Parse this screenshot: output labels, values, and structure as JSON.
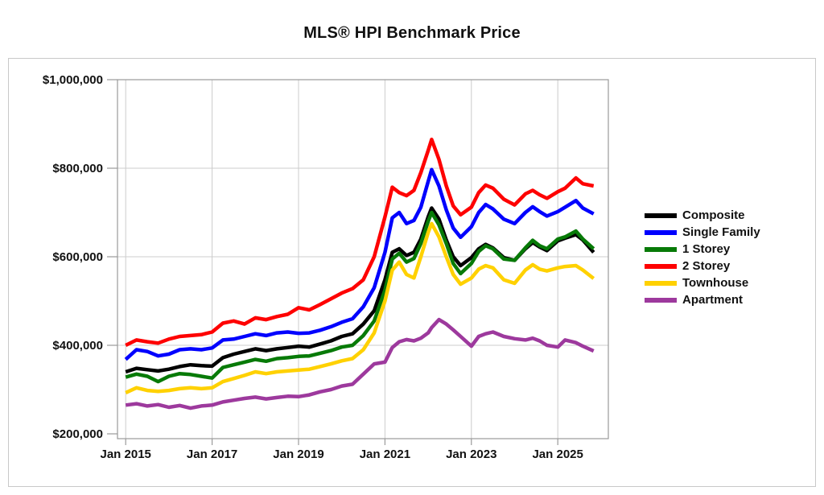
{
  "title": "MLS® HPI Benchmark Price",
  "legend": [
    {
      "label": "Composite",
      "color": "#000000"
    },
    {
      "label": "Single Family",
      "color": "#0000fe"
    },
    {
      "label": "1 Storey",
      "color": "#077a07"
    },
    {
      "label": "2 Storey",
      "color": "#fe0000"
    },
    {
      "label": "Townhouse",
      "color": "#ffd100"
    },
    {
      "label": "Apartment",
      "color": "#9d399d"
    }
  ],
  "chart_data": {
    "type": "line",
    "title": "MLS® HPI Benchmark Price",
    "xlabel": "",
    "ylabel": "",
    "y_unit": "CAD dollars",
    "x_unit": "decimal year (monthly series, values estimated from plot)",
    "ylim": [
      200000,
      1000000
    ],
    "xlim": [
      2014.81,
      2026.17
    ],
    "grid": true,
    "legend_position": "right",
    "ytick_values": [
      200000,
      400000,
      600000,
      800000,
      1000000
    ],
    "ytick_labels": [
      "$200,000",
      "$400,000",
      "$600,000",
      "$800,000",
      "$1,000,000"
    ],
    "xtick_years": [
      2015,
      2017,
      2019,
      2021,
      2023,
      2025
    ],
    "xtick_labels": [
      "Jan 2015",
      "Jan 2017",
      "Jan 2019",
      "Jan 2021",
      "Jan 2023",
      "Jan 2025"
    ],
    "x": [
      2015.0,
      2015.25,
      2015.5,
      2015.75,
      2016.0,
      2016.25,
      2016.5,
      2016.75,
      2017.0,
      2017.25,
      2017.5,
      2017.75,
      2018.0,
      2018.25,
      2018.5,
      2018.75,
      2019.0,
      2019.25,
      2019.5,
      2019.75,
      2020.0,
      2020.25,
      2020.5,
      2020.75,
      2021.0,
      2021.17,
      2021.33,
      2021.5,
      2021.67,
      2021.83,
      2022.0,
      2022.08,
      2022.25,
      2022.42,
      2022.58,
      2022.75,
      2023.0,
      2023.17,
      2023.33,
      2023.5,
      2023.75,
      2024.0,
      2024.25,
      2024.42,
      2024.58,
      2024.75,
      2025.0,
      2025.17,
      2025.42,
      2025.58,
      2025.83
    ],
    "series": [
      {
        "name": "Composite",
        "color": "#000000",
        "values": [
          340000,
          348000,
          345000,
          342000,
          346000,
          352000,
          356000,
          354000,
          353000,
          372000,
          380000,
          386000,
          392000,
          388000,
          392000,
          395000,
          398000,
          396000,
          403000,
          410000,
          420000,
          426000,
          448000,
          478000,
          548000,
          610000,
          618000,
          603000,
          610000,
          640000,
          690000,
          710000,
          685000,
          638000,
          600000,
          580000,
          598000,
          618000,
          628000,
          620000,
          598000,
          592000,
          618000,
          632000,
          622000,
          614000,
          636000,
          642000,
          650000,
          638000,
          610000
        ]
      },
      {
        "name": "Single Family",
        "color": "#0000fe",
        "values": [
          368000,
          390000,
          386000,
          376000,
          380000,
          390000,
          392000,
          390000,
          394000,
          412000,
          414000,
          420000,
          426000,
          422000,
          428000,
          430000,
          427000,
          428000,
          434000,
          442000,
          452000,
          460000,
          487000,
          530000,
          610000,
          688000,
          700000,
          675000,
          682000,
          712000,
          770000,
          797000,
          760000,
          706000,
          665000,
          644000,
          668000,
          700000,
          718000,
          708000,
          685000,
          675000,
          700000,
          713000,
          702000,
          692000,
          702000,
          712000,
          727000,
          710000,
          697000
        ]
      },
      {
        "name": "1 Storey",
        "color": "#077a07",
        "values": [
          328000,
          335000,
          330000,
          318000,
          330000,
          336000,
          334000,
          330000,
          326000,
          350000,
          356000,
          362000,
          368000,
          364000,
          370000,
          372000,
          375000,
          376000,
          382000,
          388000,
          396000,
          400000,
          422000,
          455000,
          525000,
          595000,
          608000,
          588000,
          596000,
          630000,
          680000,
          700000,
          672000,
          630000,
          585000,
          562000,
          585000,
          612000,
          625000,
          618000,
          595000,
          592000,
          620000,
          637000,
          625000,
          618000,
          640000,
          645000,
          658000,
          640000,
          618000
        ]
      },
      {
        "name": "2 Storey",
        "color": "#fe0000",
        "values": [
          400000,
          412000,
          408000,
          405000,
          414000,
          420000,
          422000,
          424000,
          430000,
          450000,
          455000,
          448000,
          462000,
          458000,
          465000,
          470000,
          485000,
          480000,
          492000,
          505000,
          518000,
          528000,
          548000,
          600000,
          690000,
          757000,
          745000,
          738000,
          750000,
          790000,
          840000,
          865000,
          820000,
          760000,
          715000,
          695000,
          712000,
          745000,
          762000,
          755000,
          730000,
          717000,
          742000,
          750000,
          740000,
          732000,
          747000,
          755000,
          778000,
          765000,
          760000
        ]
      },
      {
        "name": "Townhouse",
        "color": "#ffd100",
        "values": [
          293000,
          304000,
          298000,
          296000,
          298000,
          302000,
          304000,
          302000,
          304000,
          318000,
          325000,
          332000,
          340000,
          336000,
          340000,
          342000,
          344000,
          346000,
          352000,
          358000,
          365000,
          370000,
          390000,
          428000,
          500000,
          570000,
          588000,
          560000,
          552000,
          600000,
          655000,
          675000,
          645000,
          600000,
          560000,
          538000,
          552000,
          572000,
          580000,
          575000,
          548000,
          540000,
          570000,
          582000,
          572000,
          568000,
          575000,
          578000,
          580000,
          570000,
          551000
        ]
      },
      {
        "name": "Apartment",
        "color": "#9d399d",
        "values": [
          265000,
          268000,
          263000,
          266000,
          260000,
          264000,
          258000,
          263000,
          265000,
          272000,
          276000,
          280000,
          283000,
          279000,
          282000,
          285000,
          284000,
          288000,
          295000,
          300000,
          308000,
          312000,
          335000,
          358000,
          362000,
          395000,
          408000,
          413000,
          410000,
          416000,
          428000,
          440000,
          458000,
          448000,
          435000,
          420000,
          398000,
          420000,
          426000,
          430000,
          420000,
          415000,
          412000,
          416000,
          410000,
          400000,
          396000,
          412000,
          406000,
          398000,
          387000
        ]
      }
    ]
  }
}
